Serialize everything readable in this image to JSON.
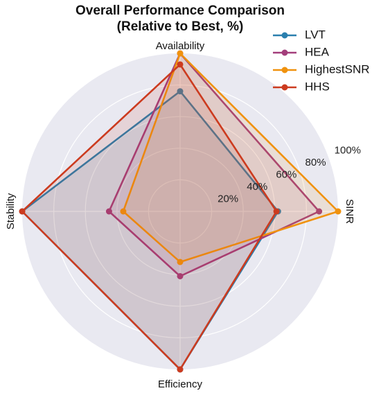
{
  "chart_data": {
    "type": "radar",
    "title": "Overall Performance Comparison",
    "subtitle": "(Relative to Best, %)",
    "axes": [
      "Availability",
      "SINR",
      "Efficiency",
      "Stability"
    ],
    "rlim": [
      0,
      100
    ],
    "r_ticks": [
      20,
      40,
      60,
      80,
      100
    ],
    "r_tick_labels": [
      "20%",
      "40%",
      "60%",
      "80%",
      "100%"
    ],
    "grid": true,
    "legend_position": "top-right",
    "series": [
      {
        "name": "LVT",
        "color": "#2a7fae",
        "values": [
          76,
          62,
          100,
          100
        ]
      },
      {
        "name": "HEA",
        "color": "#a33e7b",
        "values": [
          100,
          88,
          41,
          45
        ]
      },
      {
        "name": "HighestSNR",
        "color": "#f0920e",
        "values": [
          100,
          100,
          32,
          36
        ]
      },
      {
        "name": "HHS",
        "color": "#cc3b1f",
        "values": [
          93,
          61,
          100,
          100
        ]
      }
    ]
  }
}
